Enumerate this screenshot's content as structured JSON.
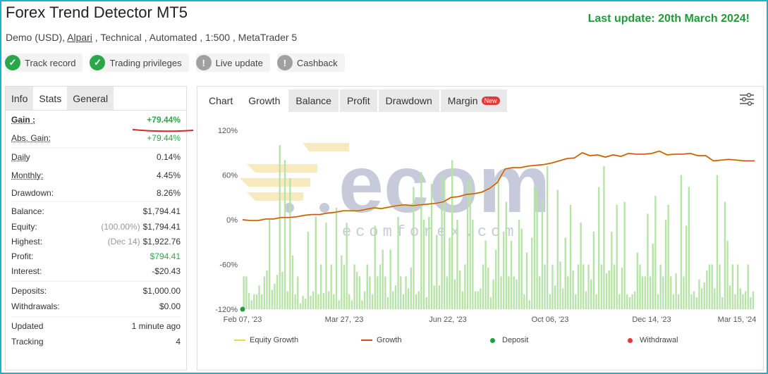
{
  "header": {
    "title": "Forex Trend Detector MT5",
    "last_update": "Last update: 20th March 2024!",
    "subtitle_pre": "Demo (USD), ",
    "broker": "Alpari",
    "subtitle_post": " , Technical , Automated , 1:500 , MetaTrader 5"
  },
  "badges": [
    {
      "label": "Track record",
      "icon": "check-icon"
    },
    {
      "label": "Trading privileges",
      "icon": "check-icon"
    },
    {
      "label": "Live update",
      "icon": "exclamation-icon"
    },
    {
      "label": "Cashback",
      "icon": "exclamation-icon"
    }
  ],
  "left_tabs": [
    "Info",
    "Stats",
    "General"
  ],
  "stats": {
    "gain": {
      "label": "Gain :",
      "value": "+79.44%"
    },
    "abs_gain": {
      "label": "Abs. Gain:",
      "value": "+79.44%"
    },
    "daily": {
      "label": "Daily",
      "value": "0.14%"
    },
    "monthly": {
      "label": "Monthly:",
      "value": "4.45%"
    },
    "drawdown": {
      "label": "Drawdown:",
      "value": "8.26%"
    },
    "balance": {
      "label": "Balance:",
      "value": "$1,794.41"
    },
    "equity": {
      "label": "Equity:",
      "note": "(100.00%)",
      "value": "$1,794.41"
    },
    "highest": {
      "label": "Highest:",
      "note": "(Dec 14)",
      "value": "$1,922.76"
    },
    "profit": {
      "label": "Profit:",
      "value": "$794.41"
    },
    "interest": {
      "label": "Interest:",
      "value": "-$20.43"
    },
    "deposits": {
      "label": "Deposits:",
      "value": "$1,000.00"
    },
    "withdrawals": {
      "label": "Withdrawals:",
      "value": "$0.00"
    },
    "updated": {
      "label": "Updated",
      "value": "1 minute ago"
    },
    "tracking": {
      "label": "Tracking",
      "value": "4"
    }
  },
  "right_tabs": [
    "Chart",
    "Growth",
    "Balance",
    "Profit",
    "Drawdown",
    "Margin"
  ],
  "new_badge": "New",
  "watermark": {
    "brand": "ecom",
    "sub": "ecomforex.com"
  },
  "colors": {
    "green": "#2aa849",
    "headline_green": "#1f9b3a",
    "growth": "#c8501e",
    "equity": "#e8d84a",
    "bars": "#b6e3a6",
    "deposit": "#1e9e3c",
    "withdrawal": "#e23a3a",
    "frame": "#19b3cf"
  },
  "chart_data": {
    "type": "line",
    "ylim": [
      -120,
      120
    ],
    "y_ticks": [
      "120%",
      "60%",
      "0%",
      "-60%",
      "-120%"
    ],
    "x_ticks": [
      "Feb 07, '23",
      "Mar 27, '23",
      "Jun 22, '23",
      "Oct 06, '23",
      "Dec 14, '23",
      "Mar 15, '24"
    ],
    "series": [
      {
        "name": "Growth",
        "x": [
          0,
          3,
          6,
          9,
          12,
          15,
          18,
          21,
          24,
          27,
          30,
          33,
          36,
          39,
          42,
          45,
          48,
          51,
          54,
          57,
          60,
          63,
          66,
          69,
          72,
          75,
          78,
          81,
          84,
          87,
          90,
          93,
          96,
          99,
          102,
          105,
          108,
          111,
          114,
          117,
          120,
          123,
          126,
          129,
          132,
          135,
          138,
          141,
          144,
          147,
          150,
          153,
          156,
          159,
          162,
          165,
          168,
          171,
          174,
          177,
          180,
          183,
          186,
          189,
          192,
          195,
          199
        ],
        "y": [
          0,
          -1,
          -1,
          1,
          1,
          3,
          3,
          4,
          6,
          7,
          7,
          9,
          10,
          12,
          12,
          12,
          14,
          16,
          15,
          17,
          19,
          20,
          19,
          20,
          21,
          22,
          24,
          30,
          31,
          34,
          35,
          37,
          42,
          50,
          68,
          70,
          70,
          72,
          73,
          74,
          76,
          79,
          82,
          83,
          90,
          86,
          87,
          84,
          87,
          85,
          89,
          88,
          88,
          89,
          92,
          87,
          88,
          88,
          89,
          86,
          86,
          79,
          80,
          81,
          80,
          79,
          79
        ]
      },
      {
        "name": "Equity Growth",
        "x": [
          0,
          3,
          6,
          9,
          12,
          15,
          18,
          21,
          24,
          27,
          30,
          33,
          36,
          39,
          42,
          45,
          48,
          51,
          54,
          57,
          60,
          63,
          66,
          69,
          72,
          75,
          78,
          81,
          84,
          87,
          90,
          93,
          96,
          99,
          102,
          105,
          108,
          111,
          114,
          117,
          120,
          123,
          126,
          129,
          132,
          135,
          138,
          141,
          144,
          147,
          150,
          153,
          156,
          159,
          162,
          165,
          168,
          171,
          174,
          177,
          180,
          183,
          186,
          189,
          192,
          195,
          199
        ],
        "y": [
          0,
          -1,
          -1,
          1,
          1,
          3,
          3,
          4,
          6,
          7,
          7,
          9,
          10,
          12,
          12,
          12,
          14,
          16,
          15,
          17,
          19,
          20,
          19,
          20,
          21,
          22,
          24,
          30,
          31,
          34,
          35,
          37,
          42,
          50,
          68,
          70,
          70,
          72,
          73,
          74,
          76,
          79,
          82,
          83,
          90,
          86,
          87,
          84,
          87,
          85,
          89,
          88,
          88,
          89,
          92,
          87,
          88,
          88,
          89,
          86,
          86,
          79,
          80,
          81,
          80,
          79,
          79
        ]
      },
      {
        "name": "Deposit",
        "x": [
          0
        ],
        "y": [
          -120
        ]
      },
      {
        "name": "Withdrawal",
        "x": [],
        "y": []
      }
    ],
    "bars": [
      22,
      22,
      11,
      6,
      10,
      10,
      16,
      10,
      22,
      26,
      61,
      13,
      17,
      23,
      110,
      25,
      100,
      12,
      88,
      36,
      10,
      22,
      4,
      9,
      7,
      52,
      9,
      12,
      62,
      10,
      30,
      11,
      58,
      12,
      30,
      10,
      68,
      6,
      36,
      30,
      58,
      10,
      6,
      30,
      25,
      22,
      6,
      12,
      30,
      22,
      10,
      56,
      22,
      30,
      40,
      22,
      8,
      40,
      12,
      16,
      62,
      22,
      10,
      22,
      14,
      28,
      82,
      10,
      12,
      92,
      60,
      8,
      62,
      84,
      16,
      50,
      16,
      90,
      88,
      22,
      48,
      100,
      20,
      60,
      26,
      12,
      30,
      86,
      88,
      60,
      12,
      12,
      14,
      30,
      46,
      28,
      8,
      20,
      40,
      88,
      22,
      52,
      72,
      22,
      46,
      22,
      20,
      60,
      54,
      10,
      38,
      6,
      48,
      82,
      80,
      22,
      74,
      30,
      96,
      10,
      30,
      16,
      80,
      32,
      14,
      48,
      22,
      70,
      26,
      10,
      30,
      58,
      30,
      12,
      30,
      20,
      52,
      10,
      82,
      30,
      96,
      24,
      26,
      52,
      30,
      70,
      10,
      28,
      72,
      10,
      8,
      10,
      12,
      38,
      30,
      22,
      22,
      64,
      22,
      44,
      76,
      10,
      30,
      22,
      60,
      70,
      22,
      10,
      24,
      10,
      90,
      22,
      56,
      82,
      10,
      12,
      8,
      20,
      14,
      18,
      26,
      30,
      30,
      14,
      90,
      30,
      8,
      72,
      46,
      16,
      30,
      10,
      30,
      14,
      10,
      12,
      30,
      8,
      12
    ],
    "legend": [
      "Equity Growth",
      "Growth",
      "Deposit",
      "Withdrawal"
    ],
    "grid": false
  }
}
